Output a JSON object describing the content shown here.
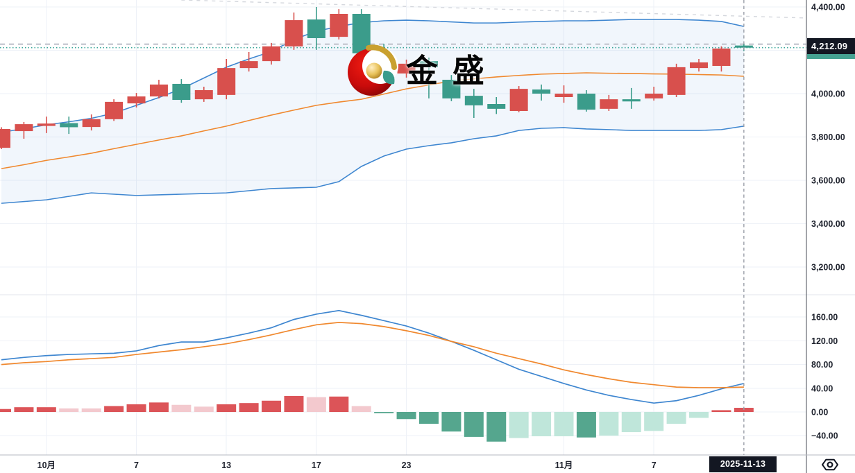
{
  "watermark": {
    "text": "金 盛"
  },
  "price_label": {
    "text": "4,212.09",
    "value": 4212.09
  },
  "time_axis": {
    "date_label": "2025-11-13",
    "crosshair_date": "11-13",
    "ticks": [
      {
        "label": "10月",
        "date": "10-01",
        "emphasis": true
      },
      {
        "label": "7",
        "date": "10-07"
      },
      {
        "label": "13",
        "date": "10-13"
      },
      {
        "label": "17",
        "date": "10-17"
      },
      {
        "label": "23",
        "date": "10-23"
      },
      {
        "label": "11月",
        "date": "11-03",
        "emphasis": true
      },
      {
        "label": "7",
        "date": "11-07"
      }
    ]
  },
  "colors": {
    "bull": "#d8504d",
    "bear": "#3b9c8b",
    "band": "#3e86d0",
    "band_mid": "#f0882e",
    "band_fill": "rgba(62,134,208,0.07)",
    "dif_line": "#3e86d0",
    "dea_line": "#f0882e",
    "hist_up": "#dc5458",
    "hist_up_fade": "#f3c9ce",
    "hist_down": "#55a68e",
    "hist_down_fade": "#bfe6da",
    "grid": "#eef1f7",
    "separator": "#e3e6ec",
    "axis_border": "#474b55",
    "time_border": "#b4b8c1",
    "axis_text": "#1e222d",
    "badge_bg": "#131722",
    "badge_text": "#ffffff",
    "countdown": "#45a292",
    "price_line": "#3aa79a",
    "level_line": "#c5c8d0",
    "trend_line": "#d4d7dd",
    "crosshair": "#9a9ea8"
  },
  "chart_data": [
    {
      "type": "candlestick",
      "pane": "main",
      "ylim": [
        3072,
        4432
      ],
      "grid_values": [
        4400,
        4200,
        4000,
        3800,
        3600,
        3400,
        3200
      ],
      "yticks": [
        {
          "label": "4,400.00",
          "value": 4400
        },
        {
          "label": "4,000.00",
          "value": 4000
        },
        {
          "label": "3,800.00",
          "value": 3800
        },
        {
          "label": "3,600.00",
          "value": 3600
        },
        {
          "label": "3,400.00",
          "value": 3400
        },
        {
          "label": "3,200.00",
          "value": 3200
        }
      ],
      "dates": [
        "09-29",
        "09-30",
        "10-01",
        "10-02",
        "10-03",
        "10-06",
        "10-07",
        "10-08",
        "10-09",
        "10-10",
        "10-13",
        "10-14",
        "10-15",
        "10-16",
        "10-17",
        "10-20",
        "10-21",
        "10-22",
        "10-23",
        "10-24",
        "10-27",
        "10-28",
        "10-29",
        "10-30",
        "10-31",
        "11-03",
        "11-04",
        "11-05",
        "11-06",
        "11-07",
        "11-10",
        "11-11",
        "11-12",
        "11-13"
      ],
      "ohlc": [
        [
          3750,
          3845,
          3744,
          3837
        ],
        [
          3827,
          3869,
          3792,
          3859
        ],
        [
          3851,
          3894,
          3818,
          3862
        ],
        [
          3864,
          3894,
          3814,
          3845
        ],
        [
          3846,
          3904,
          3830,
          3882
        ],
        [
          3882,
          3974,
          3874,
          3962
        ],
        [
          3955,
          4003,
          3936,
          3987
        ],
        [
          3987,
          4064,
          3978,
          4042
        ],
        [
          4045,
          4067,
          3958,
          3971
        ],
        [
          3974,
          4032,
          3962,
          4016
        ],
        [
          3994,
          4160,
          3974,
          4118
        ],
        [
          4118,
          4192,
          4102,
          4150
        ],
        [
          4150,
          4234,
          4134,
          4218
        ],
        [
          4218,
          4374,
          4202,
          4339
        ],
        [
          4342,
          4400,
          4202,
          4256
        ],
        [
          4262,
          4390,
          4250,
          4368
        ],
        [
          4368,
          4390,
          4013,
          4186
        ],
        [
          4138,
          4230,
          4090,
          4112
        ],
        [
          4093,
          4157,
          4074,
          4138
        ],
        [
          4150,
          4166,
          3978,
          4122
        ],
        [
          4064,
          4086,
          3965,
          3978
        ],
        [
          3990,
          4022,
          3888,
          3946
        ],
        [
          3952,
          3984,
          3906,
          3930
        ],
        [
          3920,
          4035,
          3914,
          4022
        ],
        [
          4019,
          4042,
          3968,
          4000
        ],
        [
          3984,
          4038,
          3958,
          4000
        ],
        [
          4000,
          4016,
          3917,
          3926
        ],
        [
          3930,
          3994,
          3920,
          3974
        ],
        [
          3974,
          4026,
          3930,
          3964
        ],
        [
          3978,
          4032,
          3968,
          4000
        ],
        [
          3994,
          4138,
          3984,
          4122
        ],
        [
          4118,
          4160,
          4102,
          4144
        ],
        [
          4128,
          4218,
          4102,
          4208
        ],
        [
          4222,
          4230,
          4196,
          4212.09
        ]
      ],
      "last_price": 4212.09,
      "dashed_level": 4228,
      "trendline": {
        "from_date": "10-09",
        "from_price": 4432,
        "to_price": 4349
      },
      "bollinger": {
        "upper": [
          3822,
          3838,
          3856,
          3870,
          3886,
          3910,
          3946,
          3982,
          4022,
          4072,
          4122,
          4160,
          4194,
          4250,
          4288,
          4310,
          4328,
          4336,
          4339,
          4336,
          4331,
          4326,
          4326,
          4330,
          4333,
          4336,
          4336,
          4339,
          4342,
          4342,
          4342,
          4339,
          4333,
          4310
        ],
        "middle": [
          3654,
          3672,
          3692,
          3708,
          3725,
          3746,
          3766,
          3786,
          3805,
          3828,
          3850,
          3876,
          3901,
          3924,
          3946,
          3961,
          3974,
          3998,
          4022,
          4040,
          4058,
          4068,
          4077,
          4084,
          4090,
          4093,
          4096,
          4094,
          4093,
          4091,
          4090,
          4088,
          4086,
          4080
        ],
        "lower": [
          3494,
          3502,
          3510,
          3526,
          3542,
          3536,
          3530,
          3533,
          3536,
          3539,
          3542,
          3552,
          3562,
          3565,
          3568,
          3594,
          3664,
          3712,
          3744,
          3760,
          3773,
          3792,
          3805,
          3830,
          3840,
          3843,
          3837,
          3834,
          3830,
          3830,
          3830,
          3830,
          3834,
          3850
        ]
      }
    },
    {
      "type": "macd",
      "pane": "lower",
      "ylim": [
        -72,
        193
      ],
      "grid_values": [
        160,
        120,
        80,
        40,
        0,
        -40
      ],
      "yticks": [
        {
          "label": "160.00",
          "value": 160
        },
        {
          "label": "120.00",
          "value": 120
        },
        {
          "label": "80.00",
          "value": 80
        },
        {
          "label": "40.00",
          "value": 40
        },
        {
          "label": "0.00",
          "value": 0
        },
        {
          "label": "−40.00",
          "value": -40
        }
      ],
      "dif": [
        88,
        92,
        95,
        97,
        98,
        99,
        103,
        112,
        118,
        118,
        125,
        133,
        142,
        156,
        165,
        171,
        163,
        154,
        145,
        133,
        119,
        104,
        88,
        72,
        60,
        48,
        37,
        28,
        21,
        15,
        19,
        28,
        39,
        48
      ],
      "dea": [
        80,
        83,
        85,
        88,
        90,
        92,
        97,
        101,
        105,
        110,
        115,
        122,
        130,
        139,
        147,
        151,
        149,
        144,
        137,
        129,
        119,
        110,
        99,
        90,
        81,
        71,
        63,
        56,
        50,
        46,
        42,
        41,
        41,
        42
      ],
      "histogram": [
        5,
        8,
        8,
        6,
        6,
        10,
        13,
        16,
        12,
        9,
        13,
        15,
        19,
        27,
        25,
        26,
        10,
        -2,
        -12,
        -20,
        -33,
        -42,
        -50,
        -44,
        -41,
        -41,
        -43,
        -40,
        -34,
        -32,
        -20,
        -10,
        3,
        7
      ],
      "histogram_style": [
        "up",
        "up",
        "up",
        "up-fade",
        "up-fade",
        "up",
        "up",
        "up",
        "up-fade",
        "up-fade",
        "up",
        "up",
        "up",
        "up",
        "up-fade",
        "up",
        "up-fade",
        "down",
        "down",
        "down",
        "down",
        "down",
        "down",
        "down-fade",
        "down-fade",
        "down-fade",
        "down",
        "down-fade",
        "down-fade",
        "down-fade",
        "down-fade",
        "down-fade",
        "up",
        "up"
      ]
    }
  ]
}
